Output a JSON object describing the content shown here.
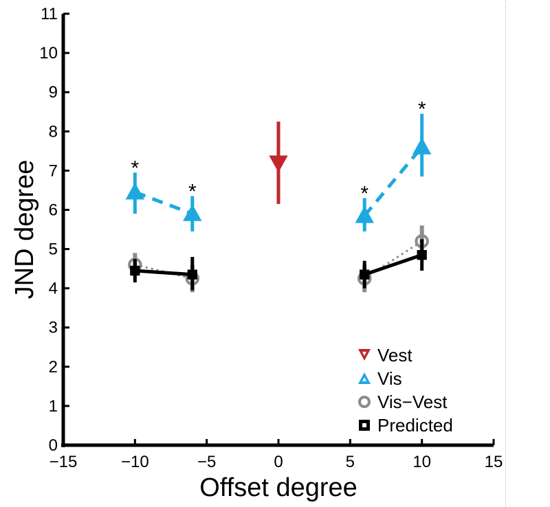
{
  "chart_data": {
    "type": "scatter",
    "xlabel": "Offset degree",
    "ylabel": "JND degree",
    "xlim": [
      -15,
      15
    ],
    "ylim": [
      0,
      11
    ],
    "xticks": [
      -15,
      -10,
      -5,
      0,
      5,
      10,
      15
    ],
    "xtick_labels": [
      "−15",
      "−10",
      "−5",
      "0",
      "5",
      "10",
      "15"
    ],
    "yticks": [
      0,
      1,
      2,
      3,
      4,
      5,
      6,
      7,
      8,
      9,
      10,
      11
    ],
    "ytick_labels": [
      "0",
      "1",
      "2",
      "3",
      "4",
      "5",
      "6",
      "7",
      "8",
      "9",
      "10",
      "11"
    ],
    "grid": false,
    "legend_position": "bottom-right",
    "series": [
      {
        "name": "Vest",
        "marker": "triangle-down",
        "color": "#c0282d",
        "line": "none",
        "points": [
          {
            "x": 0,
            "y": 7.2,
            "err_lo": 6.15,
            "err_hi": 8.25
          }
        ]
      },
      {
        "name": "Vis",
        "marker": "triangle-up",
        "color": "#1ea8e0",
        "line": "dashed",
        "points": [
          {
            "x": -10,
            "y": 6.45,
            "err_lo": 5.9,
            "err_hi": 6.95
          },
          {
            "x": -6,
            "y": 5.9,
            "err_lo": 5.45,
            "err_hi": 6.35
          },
          {
            "x": 6,
            "y": 5.85,
            "err_lo": 5.45,
            "err_hi": 6.3
          },
          {
            "x": 10,
            "y": 7.6,
            "err_lo": 6.85,
            "err_hi": 8.45
          }
        ]
      },
      {
        "name": "Vis−Vest",
        "marker": "circle",
        "color": "#8c8c8c",
        "line": "dotted",
        "points": [
          {
            "x": -10,
            "y": 4.6,
            "err_lo": 4.3,
            "err_hi": 4.9
          },
          {
            "x": -6,
            "y": 4.25,
            "err_lo": 3.9,
            "err_hi": 4.6
          },
          {
            "x": 6,
            "y": 4.25,
            "err_lo": 3.9,
            "err_hi": 4.6
          },
          {
            "x": 10,
            "y": 5.2,
            "err_lo": 4.85,
            "err_hi": 5.6
          }
        ]
      },
      {
        "name": "Predicted",
        "marker": "square",
        "color": "#000000",
        "line": "solid",
        "points": [
          {
            "x": -10,
            "y": 4.45,
            "err_lo": 4.15,
            "err_hi": 4.75
          },
          {
            "x": -6,
            "y": 4.35,
            "err_lo": 3.95,
            "err_hi": 4.8
          },
          {
            "x": 6,
            "y": 4.35,
            "err_lo": 4.0,
            "err_hi": 4.7
          },
          {
            "x": 10,
            "y": 4.85,
            "err_lo": 4.45,
            "err_hi": 5.25
          }
        ]
      }
    ],
    "annotations": [
      {
        "text": "*",
        "x": -10,
        "y": 7.0
      },
      {
        "text": "*",
        "x": -6,
        "y": 6.4
      },
      {
        "text": "*",
        "x": 6,
        "y": 6.35
      },
      {
        "text": "*",
        "x": 10,
        "y": 8.5
      }
    ]
  }
}
